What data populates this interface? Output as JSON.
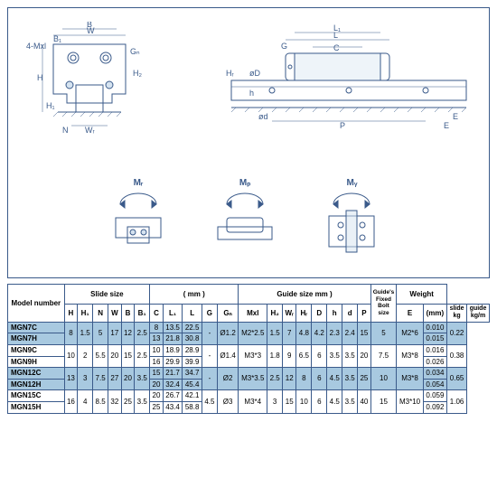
{
  "diagram": {
    "stroke": "#3a5a8a",
    "shade": "#d5e3f0",
    "dim_labels_cross": [
      "W",
      "B",
      "B₁",
      "4-Mxl",
      "N",
      "Wᵣ",
      "H",
      "H₁",
      "Gₙ",
      "H₂"
    ],
    "dim_labels_side": [
      "L",
      "L₁",
      "C",
      "G",
      "øD",
      "ød",
      "h",
      "P",
      "E",
      "Hᵣ"
    ],
    "gauges": [
      "Mᵣ",
      "Mₚ",
      "Mᵧ"
    ]
  },
  "table": {
    "group_headers": [
      "Slide size",
      "( mm )",
      "Guide size   mm )",
      "Weight"
    ],
    "guide_bolt_label": "Guide's Fixed Bolt size",
    "model_label": "Model number",
    "subheaders": [
      "H",
      "H₁",
      "N",
      "W",
      "B",
      "B₁",
      "C",
      "L₁",
      "L",
      "G",
      "Gₙ",
      "Mxl",
      "H₂",
      "Wᵣ",
      "Hᵣ",
      "D",
      "h",
      "d",
      "P",
      "E",
      "(mm)",
      "slide kg",
      "guide kg/m"
    ],
    "rows": [
      {
        "m": "MGN7C",
        "H": "8",
        "H1": "1.5",
        "N": "5",
        "W": "17",
        "B": "12",
        "B1": "2.5",
        "C": "8",
        "L1": "13.5",
        "L": "22.5",
        "G": "-",
        "Gn": "Ø1.2",
        "Mxl": "M2*2.5",
        "H2": "1.5",
        "Wr": "7",
        "Hr": "4.8",
        "D": "4.2",
        "h": "2.3",
        "d": "2.4",
        "P": "15",
        "E": "5",
        "bolt": "M2*6",
        "sk": "0.010",
        "gk": "0.22"
      },
      {
        "m": "MGN7H",
        "H": "",
        "H1": "",
        "N": "",
        "W": "",
        "B": "",
        "B1": "",
        "C": "13",
        "L1": "21.8",
        "L": "30.8",
        "G": "",
        "Gn": "",
        "Mxl": "",
        "H2": "",
        "Wr": "",
        "Hr": "",
        "D": "",
        "h": "",
        "d": "",
        "P": "",
        "E": "",
        "bolt": "",
        "sk": "0.015",
        "gk": ""
      },
      {
        "m": "MGN9C",
        "H": "10",
        "H1": "2",
        "N": "5.5",
        "W": "20",
        "B": "15",
        "B1": "2.5",
        "C": "10",
        "L1": "18.9",
        "L": "28.9",
        "G": "-",
        "Gn": "Ø1.4",
        "Mxl": "M3*3",
        "H2": "1.8",
        "Wr": "9",
        "Hr": "6.5",
        "D": "6",
        "h": "3.5",
        "d": "3.5",
        "P": "20",
        "E": "7.5",
        "bolt": "M3*8",
        "sk": "0.016",
        "gk": "0.38"
      },
      {
        "m": "MGN9H",
        "H": "",
        "H1": "",
        "N": "",
        "W": "",
        "B": "",
        "B1": "",
        "C": "16",
        "L1": "29.9",
        "L": "39.9",
        "G": "",
        "Gn": "",
        "Mxl": "",
        "H2": "",
        "Wr": "",
        "Hr": "",
        "D": "",
        "h": "",
        "d": "",
        "P": "",
        "E": "",
        "bolt": "",
        "sk": "0.026",
        "gk": ""
      },
      {
        "m": "MGN12C",
        "H": "13",
        "H1": "3",
        "N": "7.5",
        "W": "27",
        "B": "20",
        "B1": "3.5",
        "C": "15",
        "L1": "21.7",
        "L": "34.7",
        "G": "-",
        "Gn": "Ø2",
        "Mxl": "M3*3.5",
        "H2": "2.5",
        "Wr": "12",
        "Hr": "8",
        "D": "6",
        "h": "4.5",
        "d": "3.5",
        "P": "25",
        "E": "10",
        "bolt": "M3*8",
        "sk": "0.034",
        "gk": "0.65"
      },
      {
        "m": "MGN12H",
        "H": "",
        "H1": "",
        "N": "",
        "W": "",
        "B": "",
        "B1": "",
        "C": "20",
        "L1": "32.4",
        "L": "45.4",
        "G": "",
        "Gn": "",
        "Mxl": "",
        "H2": "",
        "Wr": "",
        "Hr": "",
        "D": "",
        "h": "",
        "d": "",
        "P": "",
        "E": "",
        "bolt": "",
        "sk": "0.054",
        "gk": ""
      },
      {
        "m": "MGN15C",
        "H": "16",
        "H1": "4",
        "N": "8.5",
        "W": "32",
        "B": "25",
        "B1": "3.5",
        "C": "20",
        "L1": "26.7",
        "L": "42.1",
        "G": "4.5",
        "Gn": "Ø3",
        "Mxl": "M3*4",
        "H2": "3",
        "Wr": "15",
        "Hr": "10",
        "D": "6",
        "h": "4.5",
        "d": "3.5",
        "P": "40",
        "E": "15",
        "bolt": "M3*10",
        "sk": "0.059",
        "gk": "1.06"
      },
      {
        "m": "MGN15H",
        "H": "",
        "H1": "",
        "N": "",
        "W": "",
        "B": "",
        "B1": "",
        "C": "25",
        "L1": "43.4",
        "L": "58.8",
        "G": "",
        "Gn": "",
        "Mxl": "",
        "H2": "",
        "Wr": "",
        "Hr": "",
        "D": "",
        "h": "",
        "d": "",
        "P": "",
        "E": "",
        "bolt": "",
        "sk": "0.092",
        "gk": ""
      }
    ]
  }
}
